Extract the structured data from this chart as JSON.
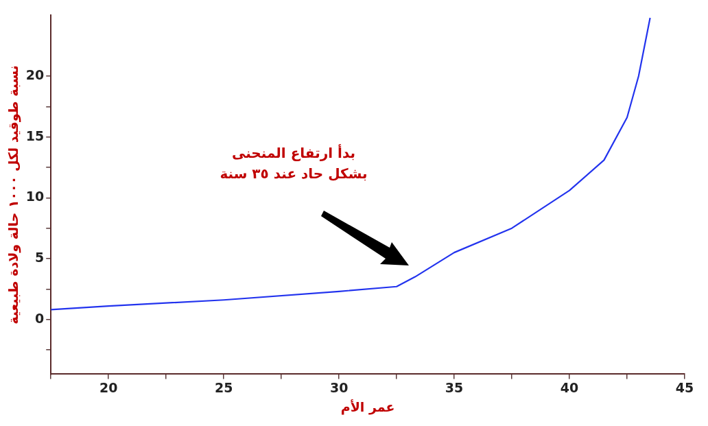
{
  "chart_data": {
    "type": "line",
    "xlabel": "عمر الأم",
    "ylabel": "نسبة طوقيد لكل ١٠٠٠ حالة ولادة طبيعية",
    "x": [
      17.5,
      20,
      25,
      30,
      32.5,
      33.3,
      35,
      37.5,
      40,
      41.5,
      42.5,
      43,
      43.5
    ],
    "series": [
      {
        "color": "#2233ee",
        "values": [
          0.8,
          1.1,
          1.6,
          2.3,
          2.7,
          3.5,
          5.5,
          7.5,
          10.6,
          13.1,
          16.6,
          20,
          24.8
        ]
      }
    ],
    "xlim": [
      17.5,
      45
    ],
    "xticks": [
      {
        "value": 17.5,
        "label": null
      },
      20,
      {
        "value": 22.5,
        "label": null
      },
      25,
      {
        "value": 27.5,
        "label": null
      },
      30,
      {
        "value": 32.5,
        "label": null
      },
      35,
      {
        "value": 37.5,
        "label": null
      },
      40,
      {
        "value": 42.5,
        "label": null
      },
      45
    ],
    "ylim": [
      -4.5,
      25
    ],
    "yticks": [
      {
        "value": -2.5,
        "label": null
      },
      0,
      {
        "value": 2.5,
        "label": null
      },
      5,
      {
        "value": 7.5,
        "label": null
      },
      10,
      {
        "value": 12.5,
        "label": null
      },
      15,
      {
        "value": 17.5,
        "label": null
      },
      20
    ],
    "annotations": [
      "بدأ ارتفاع المنحنى\nبشكل حاد عند ٣٥ سنة"
    ],
    "grid": false,
    "legend": false,
    "marker": "none",
    "line_style": "solid"
  }
}
